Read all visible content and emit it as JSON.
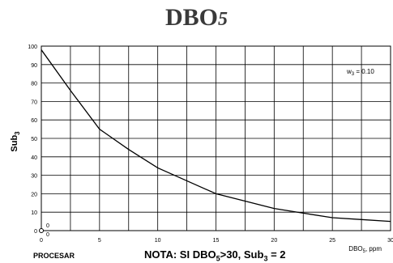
{
  "title": {
    "main": "DBO",
    "sub": "5"
  },
  "procesar_label": "PROCESAR",
  "nota": {
    "prefix": "NOTA: SI DBO",
    "sub1": "5",
    "mid": ">30, Sub",
    "sub2": "3",
    "suffix": " = 2"
  },
  "chart_data": {
    "type": "line",
    "ylabel": {
      "main": "Sub",
      "sub": "3"
    },
    "xlabel": {
      "main": "DBO",
      "sub": "5",
      "suffix": ", ppm"
    },
    "legend": {
      "text": "w",
      "sub": "3",
      "suffix": " = 0.10",
      "placement": "top-right"
    },
    "xlim": [
      0,
      30
    ],
    "ylim": [
      0,
      100
    ],
    "x_ticks": [
      "0",
      "5",
      "10",
      "15",
      "20",
      "25",
      "30"
    ],
    "y_ticks": [
      "0",
      "10",
      "20",
      "30",
      "40",
      "50",
      "60",
      "70",
      "80",
      "90",
      "100"
    ],
    "grid": true,
    "series": [
      {
        "x": [
          0,
          2.5,
          5,
          7.5,
          10,
          12.5,
          15,
          17.5,
          20,
          22.5,
          25,
          27.5,
          30
        ],
        "values": [
          98,
          76,
          55,
          44,
          34,
          27,
          20,
          16,
          12,
          9.5,
          7,
          6,
          5
        ]
      }
    ],
    "marker_point": {
      "x": 0,
      "y": 0,
      "label": "0",
      "x_label": "0"
    }
  },
  "colors": {
    "line": "#000000",
    "grid": "#000000",
    "text": "#000000",
    "title": "#3a3a3a"
  }
}
